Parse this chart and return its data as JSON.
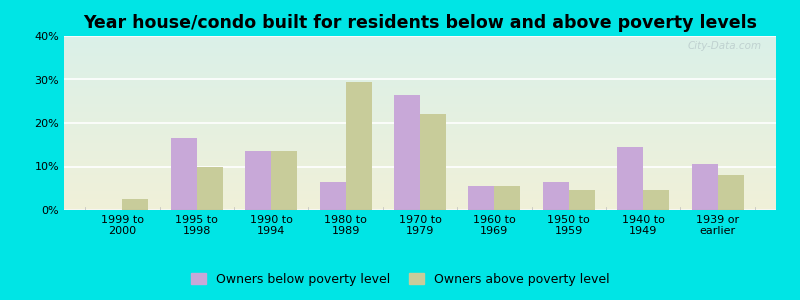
{
  "title": "Year house/condo built for residents below and above poverty levels",
  "categories": [
    "1999 to\n2000",
    "1995 to\n1998",
    "1990 to\n1994",
    "1980 to\n1989",
    "1970 to\n1979",
    "1960 to\n1969",
    "1950 to\n1959",
    "1940 to\n1949",
    "1939 or\nearlier"
  ],
  "below_poverty": [
    0,
    16.5,
    13.5,
    6.5,
    26.5,
    5.5,
    6.5,
    14.5,
    10.5
  ],
  "above_poverty": [
    2.5,
    10.0,
    13.5,
    29.5,
    22.0,
    5.5,
    4.5,
    4.5,
    8.0
  ],
  "below_color": "#c8a8d8",
  "above_color": "#c8cc9a",
  "background_outer": "#00e5e5",
  "background_plot_top": "#daf0e8",
  "background_plot_bottom": "#f0f0d8",
  "ylim": [
    0,
    40
  ],
  "yticks": [
    0,
    10,
    20,
    30,
    40
  ],
  "bar_width": 0.35,
  "title_fontsize": 12.5,
  "tick_fontsize": 8,
  "legend_fontsize": 9,
  "legend_below": "Owners below poverty level",
  "legend_above": "Owners above poverty level"
}
